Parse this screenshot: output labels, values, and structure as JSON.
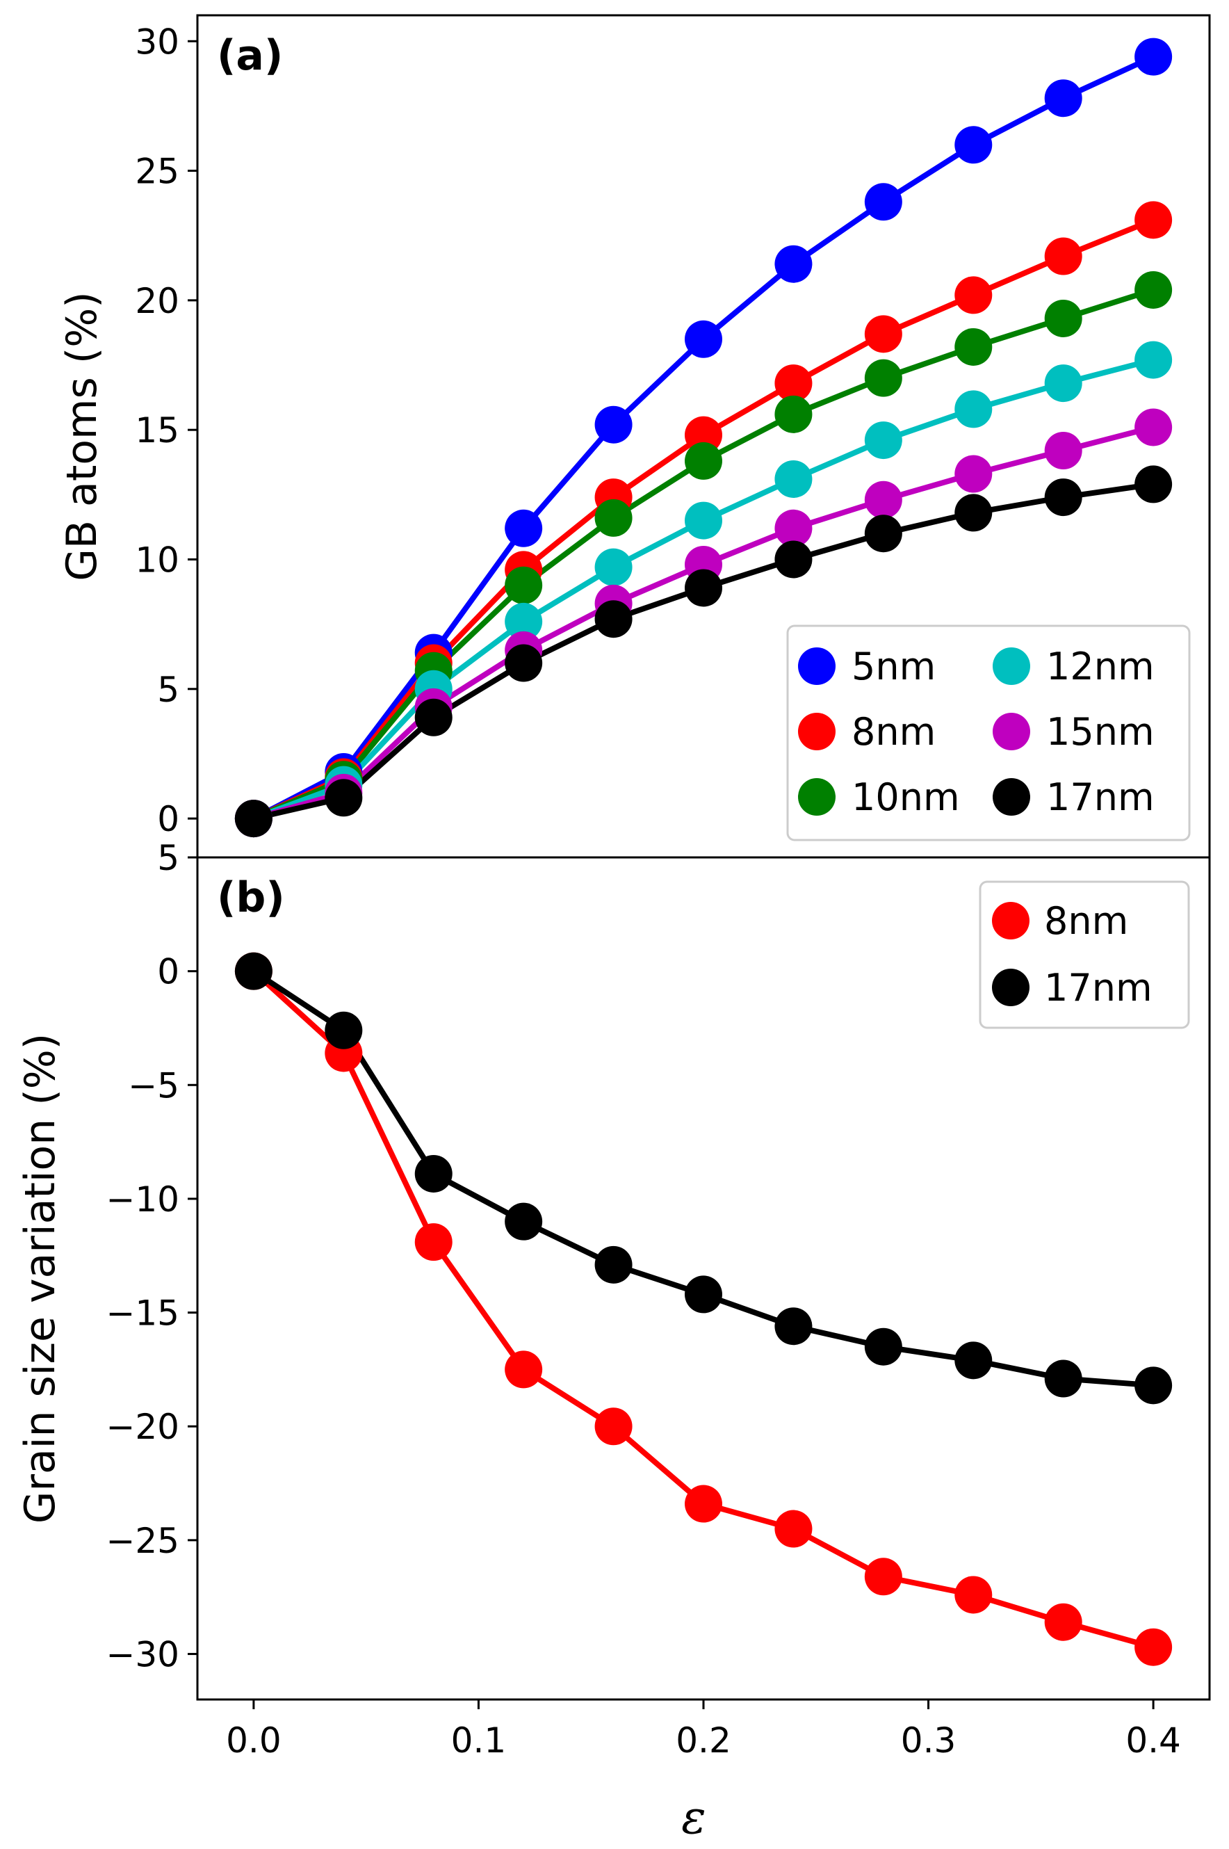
{
  "chart_data": [
    {
      "type": "line",
      "panel_label": "(a)",
      "xlabel": "",
      "ylabel": "GB atoms (%)",
      "xlim": [
        -0.025,
        0.425
      ],
      "ylim": [
        -1.5,
        31
      ],
      "yticks": [
        0,
        5,
        10,
        15,
        20,
        25,
        30
      ],
      "ytick_labels": [
        "0",
        "5",
        "10",
        "15",
        "20",
        "25",
        "30"
      ],
      "x": [
        0.0,
        0.04,
        0.08,
        0.12,
        0.16,
        0.2,
        0.24,
        0.28,
        0.32,
        0.36,
        0.4
      ],
      "legend_position": "lower-right",
      "legend_columns": 2,
      "series": [
        {
          "name": "5nm",
          "color": "#0000ff",
          "values": [
            0,
            1.8,
            6.4,
            11.2,
            15.2,
            18.5,
            21.4,
            23.8,
            26.0,
            27.8,
            29.4
          ]
        },
        {
          "name": "8nm",
          "color": "#ff0000",
          "values": [
            0,
            1.6,
            6.0,
            9.6,
            12.4,
            14.8,
            16.8,
            18.7,
            20.2,
            21.7,
            23.1
          ]
        },
        {
          "name": "10nm",
          "color": "#008000",
          "values": [
            0,
            1.5,
            5.7,
            9.0,
            11.6,
            13.8,
            15.6,
            17.0,
            18.2,
            19.3,
            20.4
          ]
        },
        {
          "name": "12nm",
          "color": "#00bfbf",
          "values": [
            0,
            1.3,
            5.0,
            7.6,
            9.7,
            11.5,
            13.1,
            14.6,
            15.8,
            16.8,
            17.7
          ]
        },
        {
          "name": "15nm",
          "color": "#bf00bf",
          "values": [
            0,
            1.0,
            4.3,
            6.5,
            8.3,
            9.8,
            11.2,
            12.3,
            13.3,
            14.2,
            15.1
          ]
        },
        {
          "name": "17nm",
          "color": "#000000",
          "values": [
            0,
            0.8,
            3.9,
            6.0,
            7.7,
            8.9,
            10.0,
            11.0,
            11.8,
            12.4,
            12.9
          ]
        }
      ]
    },
    {
      "type": "line",
      "panel_label": "(b)",
      "xlabel": "ε",
      "ylabel": "Grain size variation (%)",
      "xlim": [
        -0.025,
        0.425
      ],
      "ylim": [
        -32,
        5
      ],
      "yticks": [
        5,
        0,
        -5,
        -10,
        -15,
        -20,
        -25,
        -30
      ],
      "ytick_labels": [
        "5",
        "0",
        "−5",
        "−10",
        "−15",
        "−20",
        "−25",
        "−30"
      ],
      "xticks": [
        0.0,
        0.1,
        0.2,
        0.3,
        0.4
      ],
      "xtick_labels": [
        "0.0",
        "0.1",
        "0.2",
        "0.3",
        "0.4"
      ],
      "x": [
        0.0,
        0.04,
        0.08,
        0.12,
        0.16,
        0.2,
        0.24,
        0.28,
        0.32,
        0.36,
        0.4
      ],
      "legend_position": "top-right",
      "legend_columns": 1,
      "series": [
        {
          "name": "8nm",
          "color": "#ff0000",
          "values": [
            0,
            -3.6,
            -11.9,
            -17.5,
            -20.0,
            -23.4,
            -24.5,
            -26.6,
            -27.4,
            -28.6,
            -29.7
          ]
        },
        {
          "name": "17nm",
          "color": "#000000",
          "values": [
            0,
            -2.6,
            -8.9,
            -11.0,
            -12.9,
            -14.2,
            -15.6,
            -16.5,
            -17.1,
            -17.9,
            -18.2
          ]
        }
      ]
    }
  ]
}
